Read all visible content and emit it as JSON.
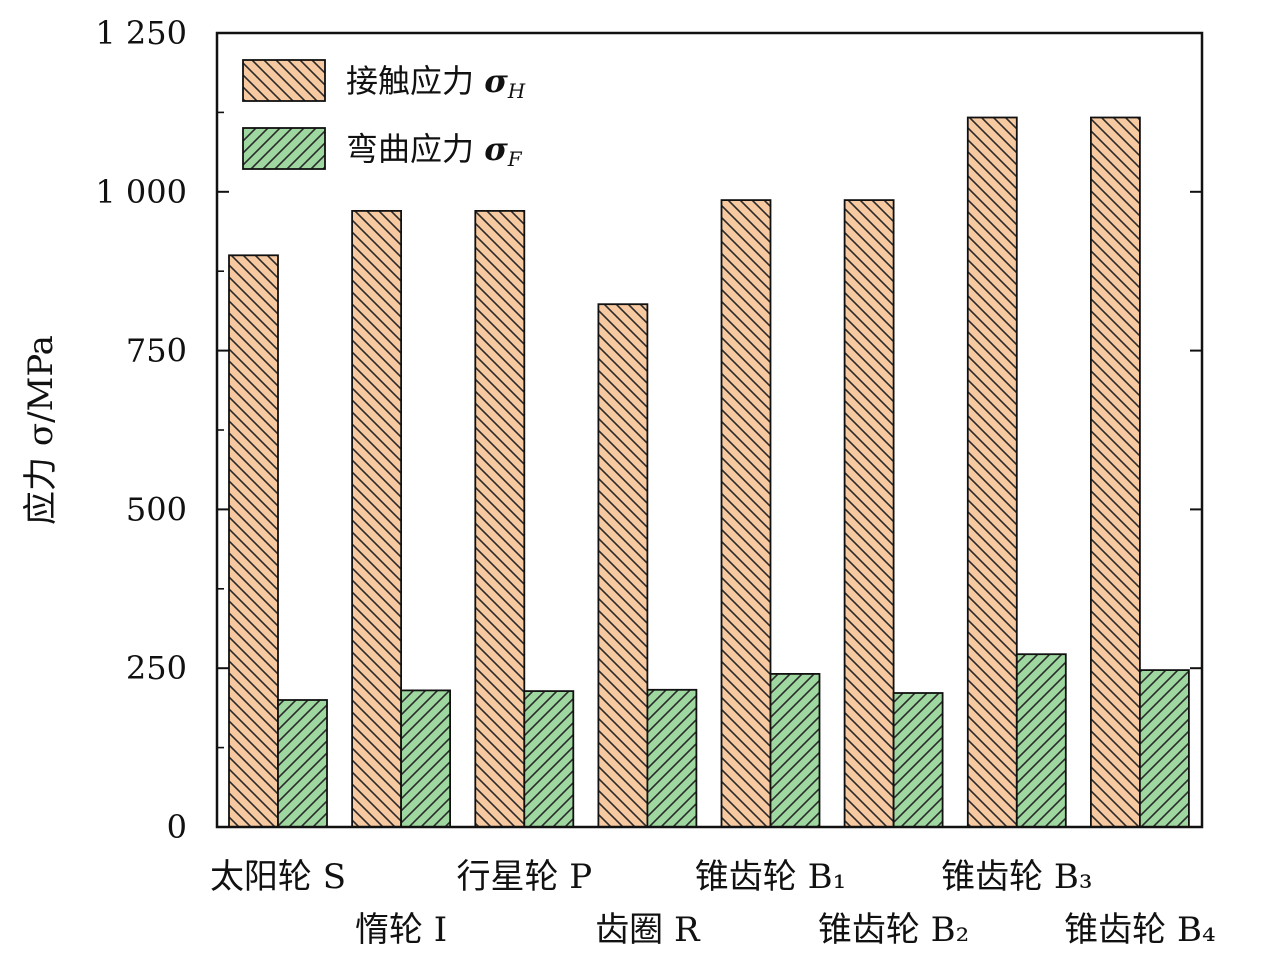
{
  "chart_data": {
    "type": "bar",
    "ylabel": "应力 σ/MPa",
    "ylim": [
      0,
      1250
    ],
    "yticks": [
      "0",
      "250",
      "500",
      "750",
      "1 000",
      "1 250"
    ],
    "ytick_values": [
      0,
      250,
      500,
      750,
      1000,
      1250
    ],
    "categories": [
      "太阳轮 S",
      "惰轮 I",
      "行星轮 P",
      "齿圈 R",
      "锥齿轮 B₁",
      "锥齿轮 B₂",
      "锥齿轮 B₃",
      "锥齿轮 B₄"
    ],
    "category_rows": [
      "top",
      "bottom",
      "top",
      "bottom",
      "top",
      "bottom",
      "top",
      "bottom"
    ],
    "series": [
      {
        "name": "接触应力 σH",
        "name_main": "接触应力 ",
        "name_sym": "σ",
        "name_sub": "H",
        "values": [
          900,
          970,
          970,
          823,
          987,
          987,
          1117,
          1117
        ]
      },
      {
        "name": "弯曲应力 σF",
        "name_main": "弯曲应力 ",
        "name_sym": "σ",
        "name_sub": "F",
        "values": [
          200,
          215,
          214,
          216,
          241,
          211,
          272,
          247
        ]
      }
    ],
    "legend_position": "top-left",
    "grid": false
  },
  "colors": {
    "series1_fill": "#f7c9a0",
    "series1_hatch": "#2a2a2a",
    "series2_fill": "#9fd7a0",
    "series2_hatch": "#2a2a2a",
    "axis": "#111111"
  }
}
